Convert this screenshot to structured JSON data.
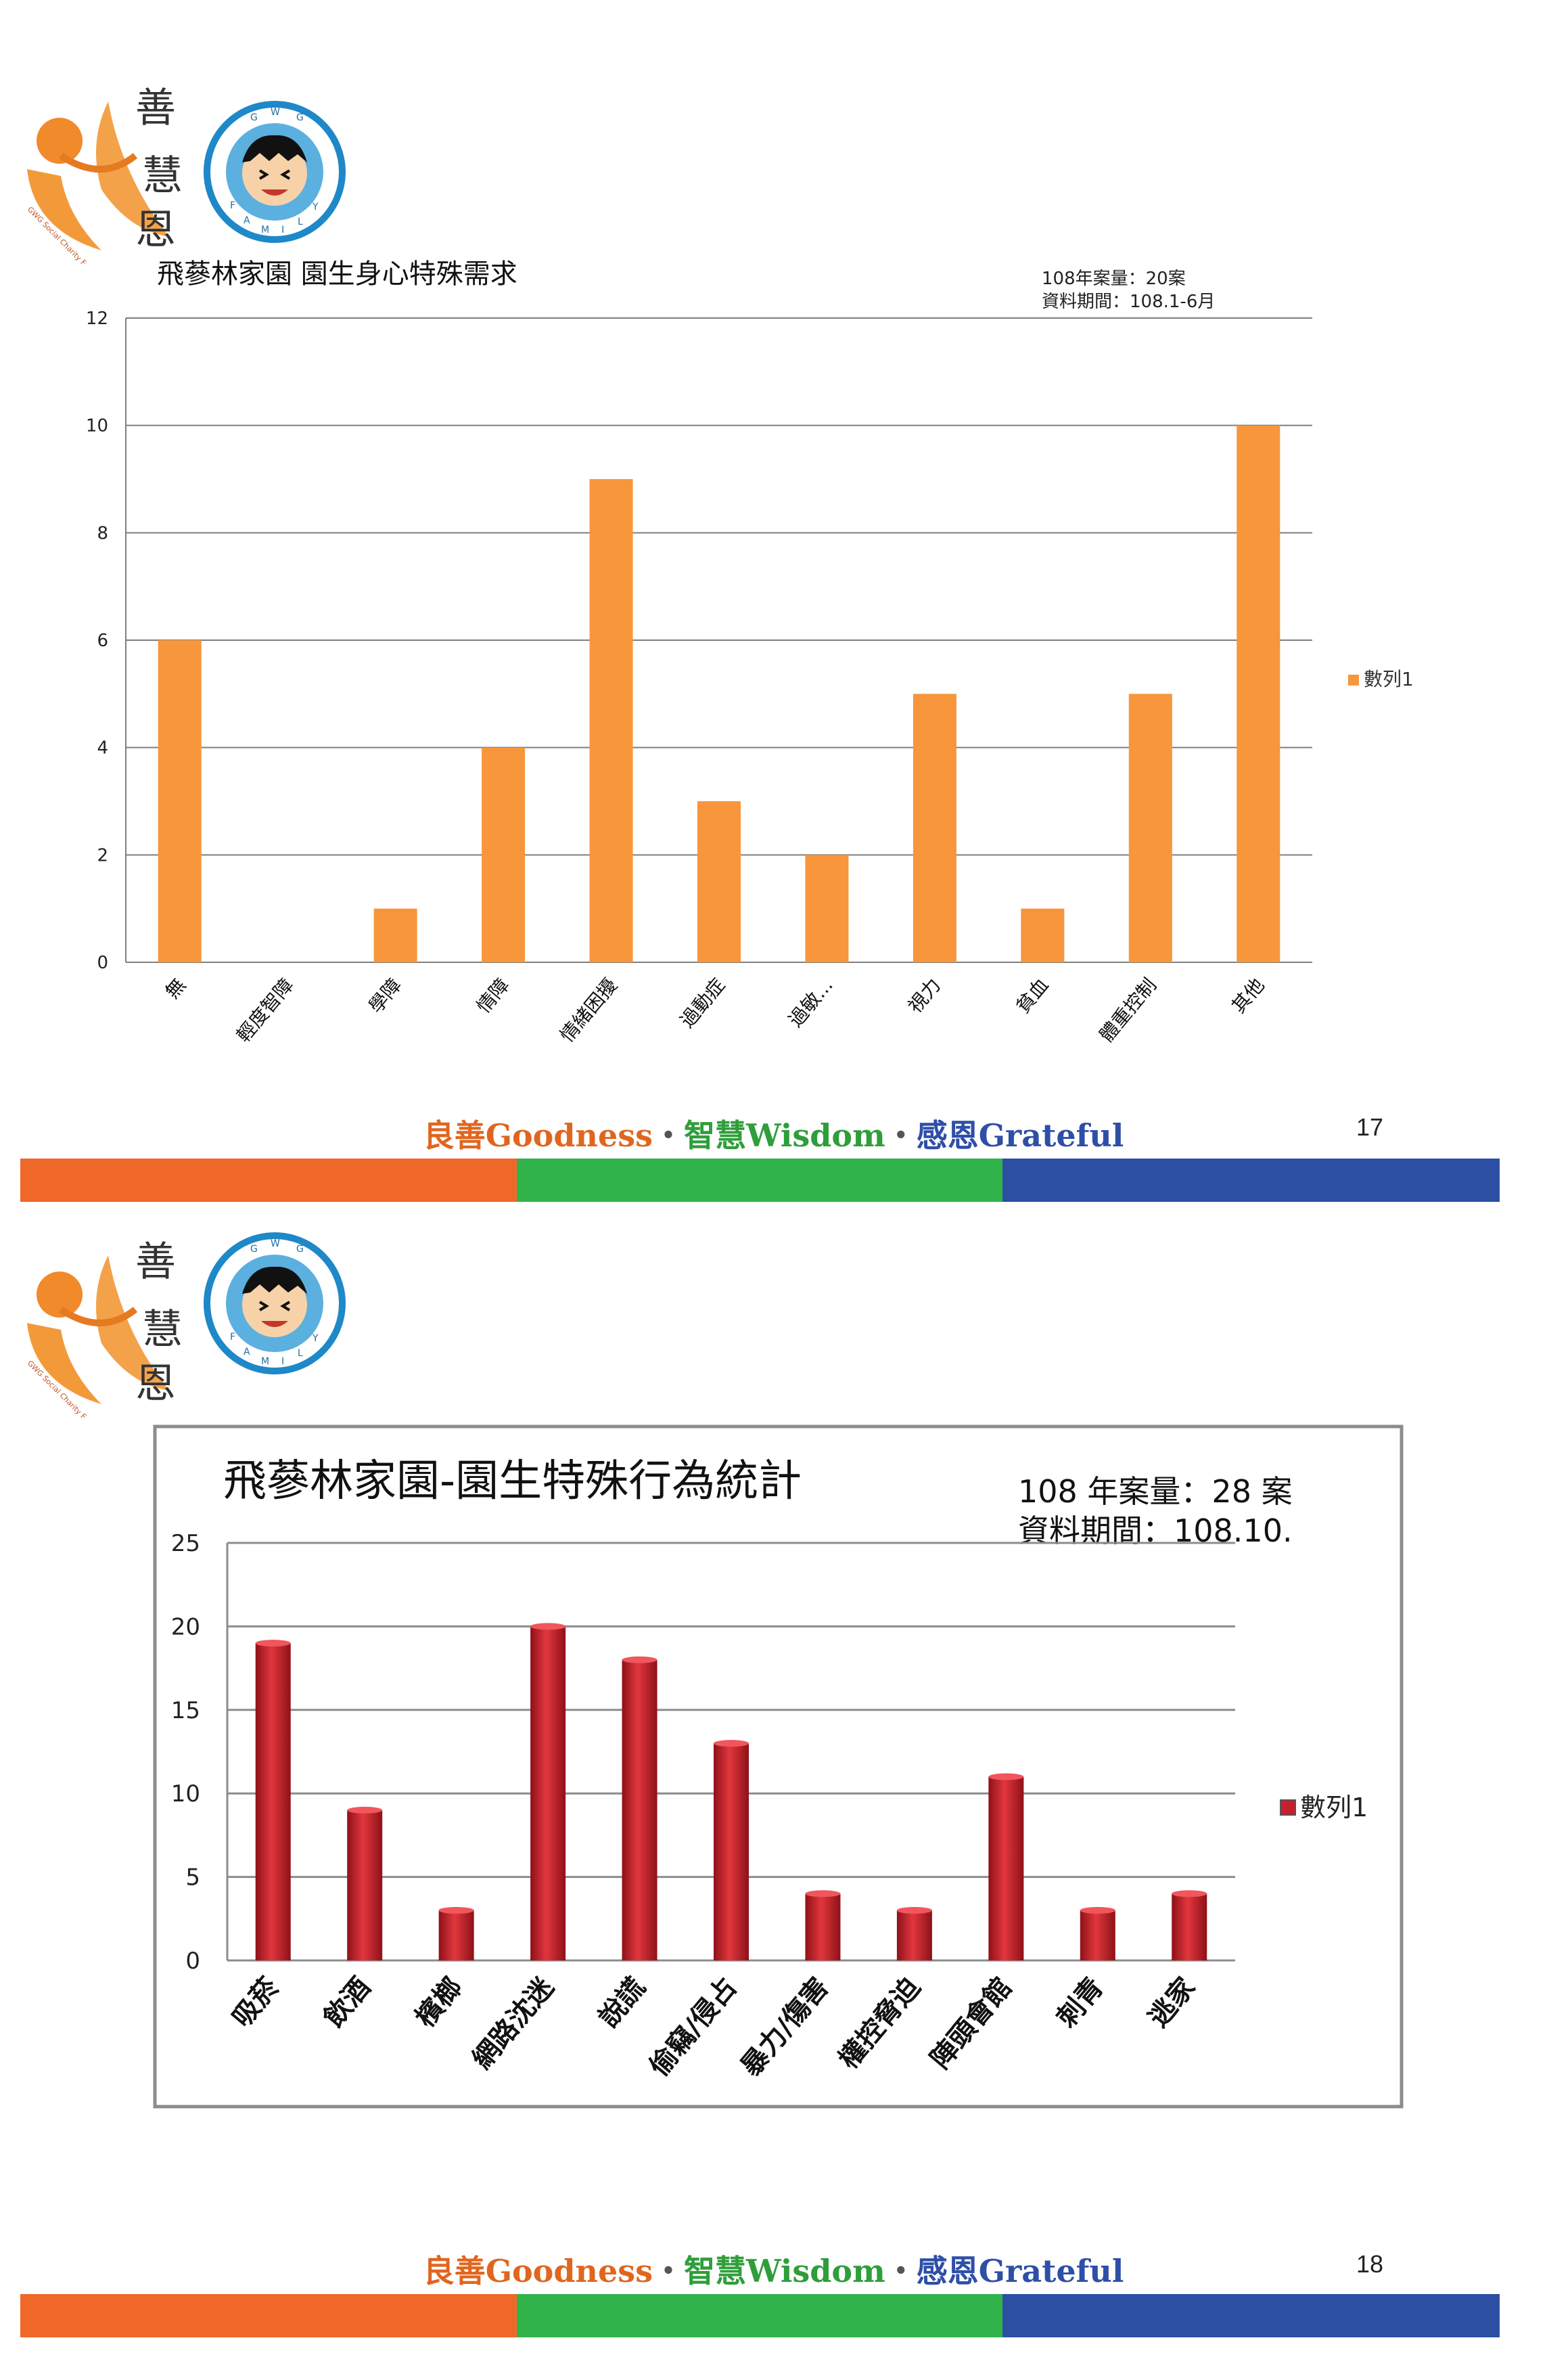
{
  "pages": [
    {
      "page_number": "17",
      "slogan": {
        "goodness": "良善Goodness",
        "sep1": "・",
        "wisdom": "智慧Wisdom",
        "sep2": "・",
        "grateful": "感恩Grateful"
      },
      "logo": {
        "chinese_text": "善慧恩",
        "foundation_text": "GWG Social Charity Foundation",
        "badge_letters": "G W G F A M I L Y"
      },
      "footer_colors": [
        "#f0672a",
        "#2fb34a",
        "#2c4ea3"
      ]
    },
    {
      "page_number": "18",
      "slogan": {
        "goodness": "良善Goodness",
        "sep1": "・",
        "wisdom": "智慧Wisdom",
        "sep2": "・",
        "grateful": "感恩Grateful"
      },
      "logo": {
        "chinese_text": "善慧恩",
        "foundation_text": "GWG Social Charity Foundation",
        "badge_letters": "G W G F A M I L Y"
      },
      "footer_colors": [
        "#f0672a",
        "#2fb34a",
        "#2c4ea3"
      ]
    }
  ],
  "chart_data": [
    {
      "type": "bar",
      "title": "飛蔘林家園 園生身心特殊需求",
      "annotation": [
        "108年案量：20案",
        "資料期間：108.1-6月"
      ],
      "categories": [
        "無",
        "輕度智障",
        "學障",
        "情障",
        "情緒困擾",
        "過動症",
        "過敏...",
        "視力",
        "貧血",
        "體重控制",
        "其他"
      ],
      "series": [
        {
          "name": "數列1",
          "values": [
            6,
            0,
            1,
            4,
            9,
            3,
            2,
            5,
            1,
            5,
            10
          ]
        }
      ],
      "ylim": [
        0,
        12
      ],
      "yticks": [
        "0",
        "2",
        "4",
        "6",
        "8",
        "10",
        "12"
      ],
      "grid": true,
      "legend": "right",
      "color": "#f7963b"
    },
    {
      "type": "bar",
      "title": "飛蔘林家園-園生特殊行為統計",
      "annotation": [
        "108 年案量：28 案",
        "資料期間：108.10."
      ],
      "categories": [
        "吸菸",
        "飲酒",
        "檳榔",
        "網路沈迷",
        "說謊",
        "偷竊/侵占",
        "暴力/傷害",
        "權控脅迫",
        "陣頭會館",
        "刺青",
        "逃家"
      ],
      "series": [
        {
          "name": "數列1",
          "values": [
            19,
            9,
            3,
            20,
            18,
            13,
            4,
            3,
            11,
            3,
            4
          ]
        }
      ],
      "ylim": [
        0,
        25
      ],
      "yticks": [
        "0",
        "5",
        "10",
        "15",
        "20",
        "25"
      ],
      "grid": true,
      "legend": "right",
      "color": "#c8202a"
    }
  ]
}
